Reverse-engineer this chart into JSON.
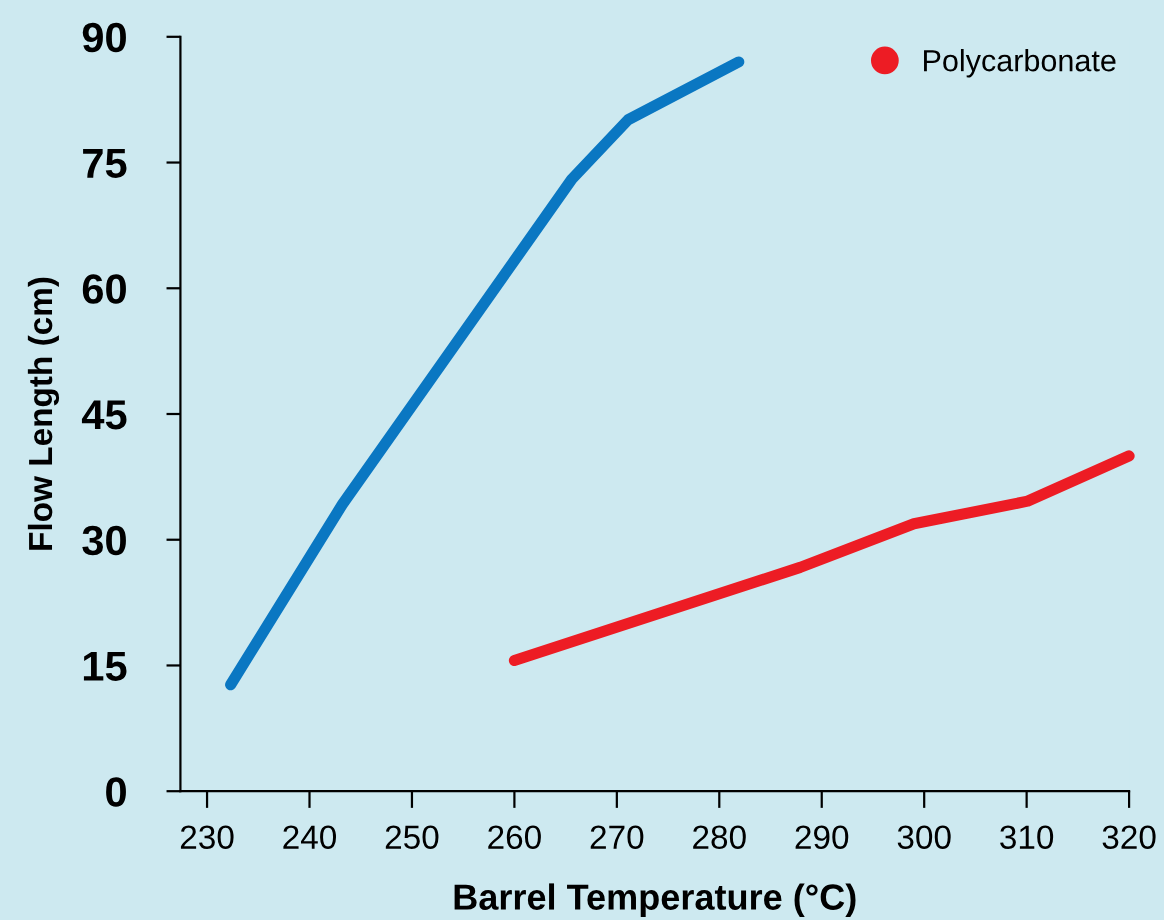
{
  "chart_data": {
    "type": "line",
    "xlabel": "Barrel Temperature (°C)",
    "ylabel": "Flow Length (cm)",
    "xlim": [
      227.4,
      320
    ],
    "ylim": [
      0,
      90
    ],
    "xticks": [
      230,
      240,
      250,
      260,
      270,
      280,
      290,
      300,
      310,
      320
    ],
    "yticks": [
      0,
      15,
      30,
      45,
      60,
      75,
      90
    ],
    "grid": false,
    "legend": "top right",
    "marker": "none",
    "line_style": "solid",
    "series": [
      {
        "color": "#0a77c2",
        "x": [
          232.3,
          243.2,
          265.6,
          271.1,
          281.9
        ],
        "values": [
          12.7,
          34.2,
          73.0,
          80.1,
          87.0
        ]
      },
      {
        "name": "Polycarbonate",
        "color": "#ed1c24",
        "x": [
          260.0,
          287.9,
          299.0,
          310.1,
          320
        ],
        "values": [
          15.6,
          26.7,
          31.9,
          34.6,
          40.0
        ]
      }
    ]
  }
}
